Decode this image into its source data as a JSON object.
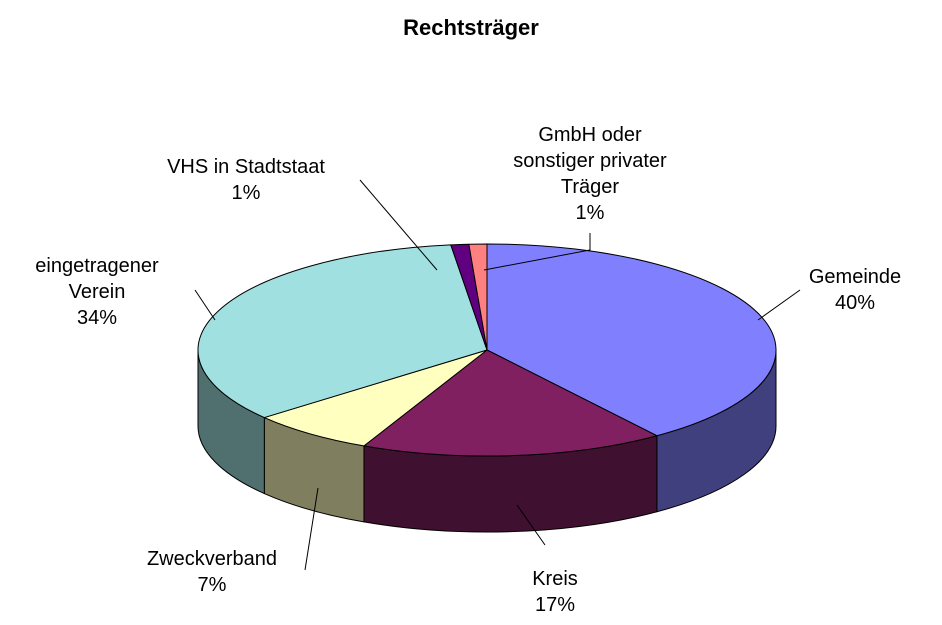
{
  "chart_data": {
    "type": "pie3d",
    "title": "Rechtsträger",
    "categories": [
      "Gemeinde",
      "Kreis",
      "Zweckverband",
      "eingetragener Verein",
      "VHS in Stadtstaat",
      "GmbH oder sonstiger privater Träger"
    ],
    "values": [
      40,
      17,
      7,
      34,
      1,
      1
    ],
    "value_labels": [
      "40%",
      "17%",
      "7%",
      "34%",
      "1%",
      "1%"
    ],
    "colors": [
      "#8080ff",
      "#802060",
      "#ffffc0",
      "#a0e0e0",
      "#600080",
      "#ff8080"
    ]
  }
}
